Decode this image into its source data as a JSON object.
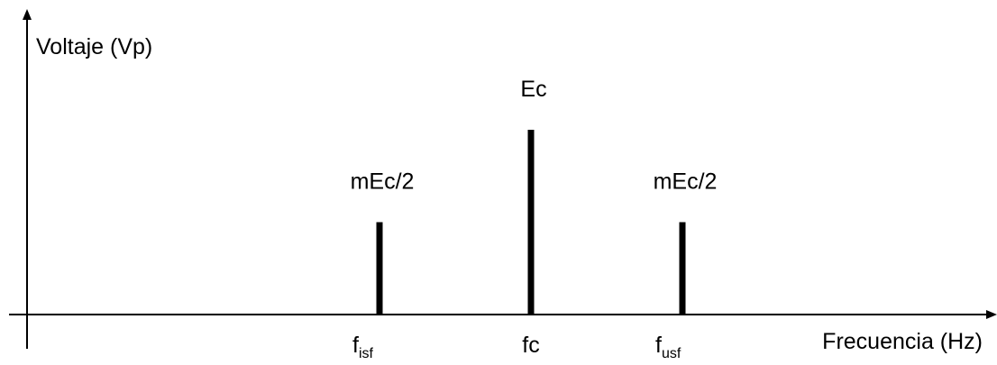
{
  "diagram": {
    "y_axis_label": "Voltaje (Vp)",
    "x_axis_label": "Frecuencia (Hz)",
    "colors": {
      "lines": "#000000",
      "background": "#ffffff"
    }
  },
  "chart_data": {
    "type": "bar",
    "categories": [
      "f_isf",
      "fc",
      "f_usf"
    ],
    "tick_labels": [
      {
        "main": "f",
        "sub": "isf"
      },
      {
        "main": "fc",
        "sub": ""
      },
      {
        "main": "f",
        "sub": "usf"
      }
    ],
    "bar_labels": [
      "mEc/2",
      "Ec",
      "mEc/2"
    ],
    "values": [
      0.5,
      1.0,
      0.5
    ],
    "xlabel": "Frecuencia (Hz)",
    "ylabel": "Voltaje (Vp)",
    "ylim": [
      0,
      1
    ]
  }
}
